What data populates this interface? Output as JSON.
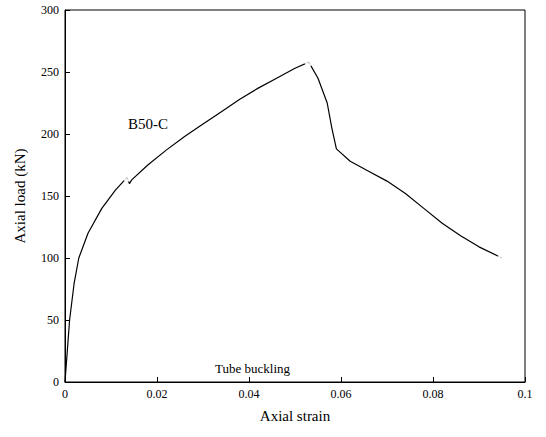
{
  "chart_data": {
    "type": "line",
    "x_label": "Axial strain",
    "y_label": "Axial load (kN)",
    "annotations": [
      "Tube buckling"
    ],
    "xlim": [
      0,
      0.1
    ],
    "xticks": [
      0,
      0.02,
      0.04,
      0.06,
      0.08,
      0.1
    ],
    "ylim": [
      0,
      300
    ],
    "yticks": [
      0,
      50,
      100,
      150,
      200,
      250,
      300
    ],
    "grid": false,
    "series": [
      {
        "name": "B50-C",
        "type": "line",
        "color": "#000000",
        "line_style": "solid",
        "x": [
          0,
          0.001,
          0.002,
          0.003,
          0.005,
          0.008,
          0.011,
          0.0135,
          0.014,
          0.0145,
          0.018,
          0.022,
          0.026,
          0.03,
          0.034,
          0.038,
          0.042,
          0.046,
          0.05,
          0.053,
          0.055,
          0.057,
          0.058,
          0.059,
          0.062,
          0.066,
          0.07,
          0.074,
          0.078,
          0.082,
          0.086,
          0.09,
          0.095
        ],
        "values": [
          0,
          50,
          80,
          100,
          120,
          140,
          155,
          165,
          160,
          163,
          175,
          187,
          198,
          208,
          218,
          228,
          237,
          245,
          253,
          258,
          245,
          225,
          205,
          188,
          178,
          170,
          162,
          152,
          140,
          128,
          118,
          109,
          100
        ]
      },
      {
        "type": "scatter",
        "marker": "circle",
        "color": "#000000",
        "x": [
          0.0135,
          0.053,
          0.095
        ],
        "values": [
          165,
          258,
          100
        ]
      }
    ]
  }
}
